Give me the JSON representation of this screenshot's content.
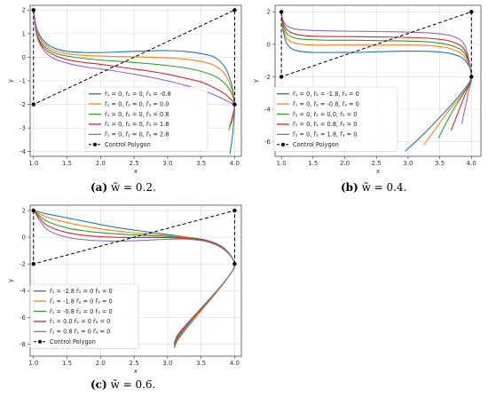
{
  "captions": {
    "a": {
      "label": "(a)",
      "text": "w̃ = 0.2."
    },
    "b": {
      "label": "(b)",
      "text": "w̃ = 0.4."
    },
    "c": {
      "label": "(c)",
      "text": "w̃ = 0.6."
    }
  },
  "chart_data": [
    {
      "id": "a",
      "type": "line",
      "xlabel": "x",
      "ylabel": "y",
      "xlim": [
        0.95,
        4.1
      ],
      "ylim": [
        -4.2,
        2.2
      ],
      "xticks": [
        1.0,
        1.5,
        2.0,
        2.5,
        3.0,
        3.5,
        4.0
      ],
      "yticks": [
        2,
        1,
        0,
        -1,
        -2,
        -3,
        -4
      ],
      "grid": true,
      "legend_position": "lower-center",
      "control_polygon": {
        "name": "Control Polygon",
        "x": [
          1,
          1,
          4,
          4
        ],
        "y": [
          2,
          -2,
          2,
          -2
        ]
      },
      "series": [
        {
          "name": "r̃₁ = 0, r̃₂ = 0, r̃₃ = -0.8",
          "color": "#1f77b4",
          "x": [
            1.0,
            1.05,
            1.15,
            1.3,
            1.5,
            1.75,
            2.0,
            2.25,
            2.5,
            2.75,
            3.0,
            3.25,
            3.5,
            3.7,
            3.85,
            3.95,
            4.0,
            3.99,
            3.97,
            3.93
          ],
          "y": [
            2.0,
            1.2,
            0.7,
            0.4,
            0.25,
            0.2,
            0.2,
            0.22,
            0.25,
            0.27,
            0.28,
            0.25,
            0.15,
            0.0,
            -0.4,
            -1.1,
            -2.0,
            -2.6,
            -3.3,
            -4.1
          ]
        },
        {
          "name": "r̃₁ = 0, r̃₂ = 0, r̃₃ = 0.0",
          "color": "#ff7f0e",
          "x": [
            1.0,
            1.05,
            1.15,
            1.3,
            1.5,
            1.75,
            2.0,
            2.25,
            2.5,
            2.75,
            3.0,
            3.25,
            3.5,
            3.7,
            3.85,
            3.95,
            4.0,
            3.98,
            3.95,
            3.91
          ],
          "y": [
            2.0,
            1.1,
            0.6,
            0.3,
            0.15,
            0.08,
            0.05,
            0.03,
            0.02,
            0.0,
            -0.03,
            -0.08,
            -0.18,
            -0.35,
            -0.7,
            -1.3,
            -2.0,
            -2.5,
            -2.8,
            -3.1
          ]
        },
        {
          "name": "r̃₁ = 0, r̃₂ = 0, r̃₃ = 0.8",
          "color": "#2ca02c",
          "x": [
            1.0,
            1.05,
            1.15,
            1.3,
            1.5,
            1.75,
            2.0,
            2.25,
            2.5,
            2.75,
            3.0,
            3.25,
            3.5,
            3.7,
            3.85,
            3.95,
            4.0,
            3.98,
            3.95,
            3.92
          ],
          "y": [
            2.0,
            1.0,
            0.5,
            0.2,
            0.05,
            -0.05,
            -0.12,
            -0.17,
            -0.22,
            -0.28,
            -0.35,
            -0.45,
            -0.6,
            -0.8,
            -1.1,
            -1.5,
            -2.0,
            -2.4,
            -2.7,
            -2.95
          ]
        },
        {
          "name": "r̃₁ = 0, r̃₂ = 0, r̃₃ = 1.8",
          "color": "#d62728",
          "x": [
            1.0,
            1.05,
            1.15,
            1.3,
            1.5,
            1.75,
            2.0,
            2.25,
            2.5,
            2.75,
            3.0,
            3.25,
            3.5,
            3.7,
            3.85,
            3.95,
            4.0,
            3.98,
            3.96,
            3.95
          ],
          "y": [
            2.0,
            0.95,
            0.4,
            0.1,
            -0.1,
            -0.22,
            -0.3,
            -0.4,
            -0.5,
            -0.6,
            -0.72,
            -0.88,
            -1.05,
            -1.3,
            -1.55,
            -1.8,
            -2.0,
            -2.35,
            -2.6,
            -2.8
          ]
        },
        {
          "name": "r̃₁ = 0, r̃₂ = 0, r̃₃ = 2.8",
          "color": "#9467bd",
          "x": [
            1.0,
            1.05,
            1.15,
            1.3,
            1.5,
            1.75,
            2.0,
            2.25,
            2.5,
            2.75,
            3.0,
            3.25,
            3.5,
            3.7,
            3.85,
            3.95,
            4.0,
            3.99,
            3.98
          ],
          "y": [
            2.0,
            0.9,
            0.3,
            -0.05,
            -0.25,
            -0.4,
            -0.5,
            -0.6,
            -0.72,
            -0.85,
            -1.0,
            -1.18,
            -1.38,
            -1.6,
            -1.8,
            -1.95,
            -2.0,
            -2.3,
            -2.55
          ]
        }
      ]
    },
    {
      "id": "b",
      "type": "line",
      "xlabel": "x",
      "ylabel": "y",
      "xlim": [
        0.9,
        4.15
      ],
      "ylim": [
        -6.9,
        2.4
      ],
      "xticks": [
        1.0,
        1.5,
        2.0,
        2.5,
        3.0,
        3.5,
        4.0
      ],
      "yticks": [
        2,
        0,
        -2,
        -4,
        -6
      ],
      "grid": true,
      "legend_position": "lower-left",
      "control_polygon": {
        "name": "Control Polygon",
        "x": [
          1,
          1,
          4,
          4
        ],
        "y": [
          2,
          -2,
          2,
          -2
        ]
      },
      "series": [
        {
          "name": "r̃₁ = 0, r̃₂ = -1.8, r̃₃ = 0",
          "color": "#1f77b4",
          "x": [
            1.0,
            1.03,
            1.1,
            1.25,
            1.5,
            1.8,
            2.2,
            2.6,
            3.0,
            3.4,
            3.7,
            3.9,
            4.0,
            3.8,
            3.5,
            3.2,
            2.95
          ],
          "y": [
            2.0,
            0.8,
            -0.05,
            -0.4,
            -0.5,
            -0.5,
            -0.5,
            -0.45,
            -0.42,
            -0.45,
            -0.6,
            -1.0,
            -2.0,
            -3.2,
            -4.5,
            -5.7,
            -6.6
          ]
        },
        {
          "name": "r̃₁ = 0, r̃₂ = -0.8, r̃₃ = 0",
          "color": "#ff7f0e",
          "x": [
            1.0,
            1.03,
            1.1,
            1.25,
            1.5,
            1.8,
            2.2,
            2.6,
            3.0,
            3.4,
            3.7,
            3.9,
            4.0,
            3.85,
            3.6,
            3.4,
            3.25
          ],
          "y": [
            2.0,
            1.0,
            0.3,
            0.05,
            -0.05,
            -0.05,
            -0.05,
            -0.05,
            -0.05,
            -0.1,
            -0.3,
            -0.8,
            -2.0,
            -3.1,
            -4.3,
            -5.4,
            -6.2
          ]
        },
        {
          "name": "r̃₁ = 0, r̃₂ = 0.0, r̃₃ = 0",
          "color": "#2ca02c",
          "x": [
            1.0,
            1.03,
            1.1,
            1.25,
            1.5,
            1.8,
            2.2,
            2.6,
            3.0,
            3.4,
            3.7,
            3.9,
            4.0,
            3.88,
            3.72,
            3.58,
            3.48
          ],
          "y": [
            2.0,
            1.15,
            0.6,
            0.35,
            0.28,
            0.25,
            0.25,
            0.22,
            0.2,
            0.12,
            -0.1,
            -0.6,
            -2.0,
            -3.0,
            -4.0,
            -5.0,
            -5.8
          ]
        },
        {
          "name": "r̃₁ = 0, r̃₂ = 0.8, r̃₃ = 0",
          "color": "#d62728",
          "x": [
            1.0,
            1.03,
            1.1,
            1.25,
            1.5,
            1.8,
            2.2,
            2.6,
            3.0,
            3.4,
            3.7,
            3.9,
            4.0,
            3.92,
            3.83,
            3.75,
            3.68
          ],
          "y": [
            2.0,
            1.3,
            0.85,
            0.6,
            0.5,
            0.48,
            0.47,
            0.45,
            0.42,
            0.35,
            0.15,
            -0.4,
            -2.0,
            -2.9,
            -3.8,
            -4.6,
            -5.3
          ]
        },
        {
          "name": "r̃₁ = 0, r̃₂ = 1.8, r̃₃ = 0",
          "color": "#9467bd",
          "x": [
            1.0,
            1.03,
            1.1,
            1.25,
            1.5,
            1.8,
            2.2,
            2.6,
            3.0,
            3.4,
            3.7,
            3.9,
            4.0,
            3.96,
            3.92,
            3.88,
            3.85
          ],
          "y": [
            2.0,
            1.45,
            1.1,
            0.92,
            0.85,
            0.82,
            0.8,
            0.78,
            0.75,
            0.68,
            0.5,
            -0.1,
            -2.0,
            -2.8,
            -3.6,
            -4.3,
            -4.9
          ]
        }
      ]
    },
    {
      "id": "c",
      "type": "line",
      "xlabel": "x",
      "ylabel": "y",
      "xlim": [
        0.95,
        4.1
      ],
      "ylim": [
        -8.9,
        2.4
      ],
      "xticks": [
        1.0,
        1.5,
        2.0,
        2.5,
        3.0,
        3.5,
        4.0
      ],
      "yticks": [
        2,
        0,
        -2,
        -4,
        -6,
        -8
      ],
      "grid": true,
      "legend_position": "lower-left",
      "control_polygon": {
        "name": "Control Polygon",
        "x": [
          1,
          1,
          4,
          4
        ],
        "y": [
          2,
          -2,
          2,
          -2
        ]
      },
      "series": [
        {
          "name": "r̃₁ = -2.8 r̃₂ = 0 r̃₃ = 0",
          "color": "#1f77b4",
          "x": [
            1.0,
            1.2,
            1.5,
            1.8,
            2.1,
            2.4,
            2.7,
            3.0,
            3.3,
            3.6,
            3.85,
            4.0,
            3.9,
            3.7,
            3.5,
            3.3,
            3.15,
            3.1
          ],
          "y": [
            2.0,
            1.75,
            1.45,
            1.15,
            0.85,
            0.6,
            0.4,
            0.2,
            0.0,
            -0.3,
            -0.9,
            -2.0,
            -3.0,
            -4.3,
            -5.5,
            -6.7,
            -7.7,
            -8.3
          ]
        },
        {
          "name": "r̃₁ = -1.8 r̃₂ = 0 r̃₃ = 0",
          "color": "#ff7f0e",
          "x": [
            1.0,
            1.2,
            1.5,
            1.8,
            2.1,
            2.4,
            2.7,
            3.0,
            3.3,
            3.6,
            3.85,
            4.0,
            3.9,
            3.7,
            3.5,
            3.3,
            3.15,
            3.1
          ],
          "y": [
            2.0,
            1.5,
            1.1,
            0.8,
            0.55,
            0.38,
            0.25,
            0.12,
            0.0,
            -0.25,
            -0.85,
            -2.0,
            -3.0,
            -4.3,
            -5.5,
            -6.6,
            -7.6,
            -8.2
          ]
        },
        {
          "name": "r̃₁ = -0.8 r̃₂ = 0 r̃₃ = 0",
          "color": "#2ca02c",
          "x": [
            1.0,
            1.2,
            1.5,
            1.8,
            2.1,
            2.4,
            2.7,
            3.0,
            3.3,
            3.6,
            3.85,
            4.0,
            3.9,
            3.7,
            3.5,
            3.3,
            3.15,
            3.1
          ],
          "y": [
            2.0,
            1.2,
            0.7,
            0.45,
            0.3,
            0.2,
            0.12,
            0.05,
            -0.05,
            -0.25,
            -0.85,
            -2.0,
            -3.0,
            -4.25,
            -5.4,
            -6.5,
            -7.5,
            -8.1
          ]
        },
        {
          "name": "r̃₁ = 0.0 r̃₂ = 0 r̃₃ = 0",
          "color": "#d62728",
          "x": [
            1.0,
            1.2,
            1.5,
            1.8,
            2.1,
            2.4,
            2.7,
            3.0,
            3.3,
            3.6,
            3.85,
            4.0,
            3.9,
            3.7,
            3.5,
            3.3,
            3.15,
            3.1
          ],
          "y": [
            2.0,
            0.9,
            0.35,
            0.12,
            0.02,
            -0.02,
            -0.02,
            -0.03,
            -0.1,
            -0.3,
            -0.9,
            -2.0,
            -3.0,
            -4.2,
            -5.35,
            -6.45,
            -7.4,
            -8.0
          ]
        },
        {
          "name": "r̃₁ = 0.8 r̃₂ = 0 r̃₃ = 0",
          "color": "#9467bd",
          "x": [
            1.0,
            1.2,
            1.5,
            1.8,
            2.1,
            2.4,
            2.7,
            3.0,
            3.3,
            3.6,
            3.85,
            4.0,
            3.9,
            3.7,
            3.5,
            3.3,
            3.15,
            3.1
          ],
          "y": [
            2.0,
            0.6,
            0.0,
            -0.2,
            -0.28,
            -0.28,
            -0.22,
            -0.15,
            -0.15,
            -0.35,
            -0.95,
            -2.0,
            -3.0,
            -4.2,
            -5.3,
            -6.4,
            -7.3,
            -7.9
          ]
        }
      ]
    }
  ]
}
